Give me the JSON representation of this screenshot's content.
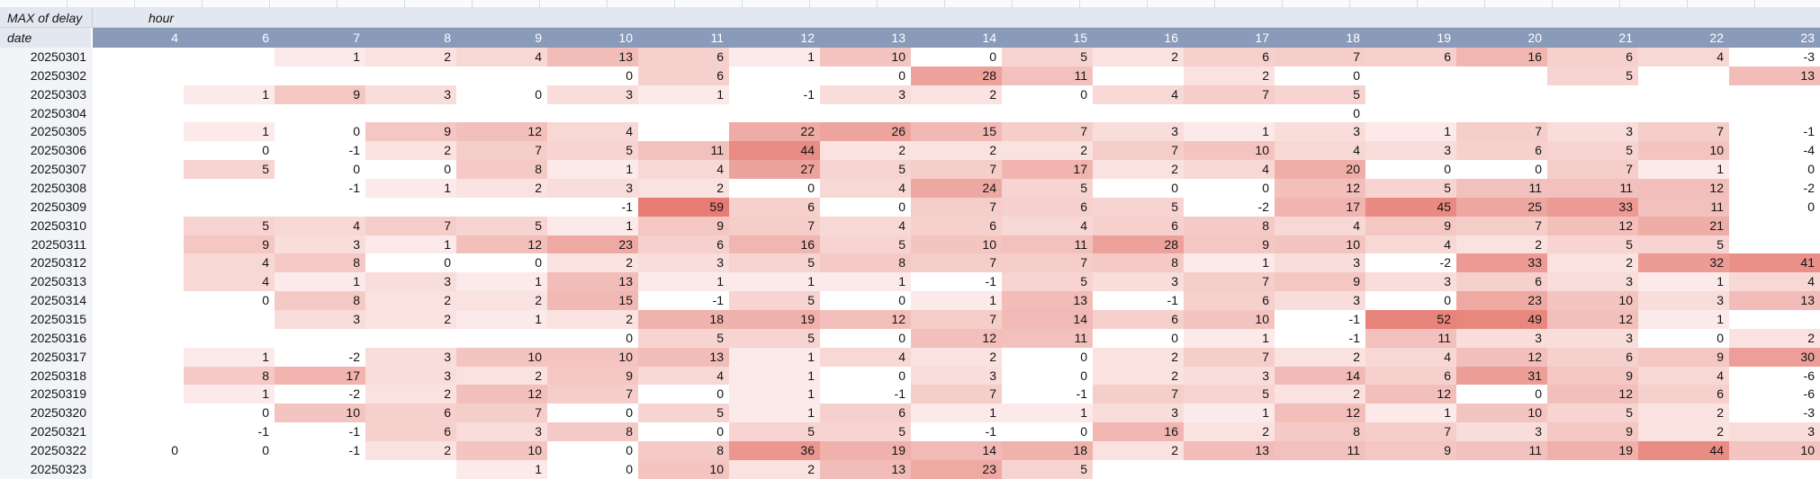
{
  "pivot": {
    "measure_label": "MAX of delay",
    "col_dimension_label": "hour",
    "row_dimension_label": "date",
    "hours": [
      "4",
      "6",
      "7",
      "8",
      "9",
      "10",
      "11",
      "12",
      "13",
      "14",
      "15",
      "16",
      "17",
      "18",
      "19",
      "20",
      "21",
      "22",
      "23"
    ],
    "rows": [
      {
        "date": "20250301",
        "values": [
          null,
          null,
          1,
          2,
          4,
          13,
          6,
          1,
          10,
          0,
          5,
          2,
          6,
          7,
          6,
          16,
          6,
          4,
          -3
        ]
      },
      {
        "date": "20250302",
        "values": [
          null,
          null,
          null,
          null,
          null,
          0,
          6,
          null,
          0,
          28,
          11,
          null,
          2,
          0,
          null,
          null,
          5,
          null,
          13
        ]
      },
      {
        "date": "20250303",
        "values": [
          null,
          1,
          9,
          3,
          0,
          3,
          1,
          -1,
          3,
          2,
          0,
          4,
          7,
          5,
          null,
          null,
          null,
          null,
          null
        ]
      },
      {
        "date": "20250304",
        "values": [
          null,
          null,
          null,
          null,
          null,
          null,
          null,
          null,
          null,
          null,
          null,
          null,
          null,
          0,
          null,
          null,
          null,
          null,
          null
        ]
      },
      {
        "date": "20250305",
        "values": [
          null,
          1,
          0,
          9,
          12,
          4,
          null,
          22,
          26,
          15,
          7,
          3,
          1,
          3,
          1,
          7,
          3,
          7,
          -1
        ]
      },
      {
        "date": "20250306",
        "values": [
          null,
          0,
          -1,
          2,
          7,
          5,
          11,
          44,
          2,
          2,
          2,
          7,
          10,
          4,
          3,
          6,
          5,
          10,
          -4
        ]
      },
      {
        "date": "20250307",
        "values": [
          null,
          5,
          0,
          0,
          8,
          1,
          4,
          27,
          5,
          7,
          17,
          2,
          4,
          20,
          0,
          0,
          7,
          1,
          0
        ]
      },
      {
        "date": "20250308",
        "values": [
          null,
          null,
          -1,
          1,
          2,
          3,
          2,
          0,
          4,
          24,
          5,
          0,
          0,
          12,
          5,
          11,
          11,
          12,
          -2
        ]
      },
      {
        "date": "20250309",
        "values": [
          null,
          null,
          null,
          null,
          null,
          -1,
          59,
          6,
          0,
          7,
          6,
          5,
          -2,
          17,
          45,
          25,
          33,
          11,
          0
        ]
      },
      {
        "date": "20250310",
        "values": [
          null,
          5,
          4,
          7,
          5,
          1,
          9,
          7,
          4,
          6,
          4,
          6,
          8,
          4,
          9,
          7,
          12,
          21,
          null
        ]
      },
      {
        "date": "20250311",
        "values": [
          null,
          9,
          3,
          1,
          12,
          23,
          6,
          16,
          5,
          10,
          11,
          28,
          9,
          10,
          4,
          2,
          5,
          5,
          null
        ]
      },
      {
        "date": "20250312",
        "values": [
          null,
          4,
          8,
          0,
          0,
          2,
          3,
          5,
          8,
          7,
          7,
          8,
          1,
          3,
          -2,
          33,
          2,
          32,
          41
        ]
      },
      {
        "date": "20250313",
        "values": [
          null,
          4,
          1,
          3,
          1,
          13,
          1,
          1,
          1,
          -1,
          5,
          3,
          7,
          9,
          3,
          6,
          3,
          1,
          4
        ]
      },
      {
        "date": "20250314",
        "values": [
          null,
          0,
          8,
          2,
          2,
          15,
          -1,
          5,
          0,
          1,
          13,
          -1,
          6,
          3,
          0,
          23,
          10,
          3,
          13
        ]
      },
      {
        "date": "20250315",
        "values": [
          null,
          null,
          3,
          2,
          1,
          2,
          18,
          19,
          12,
          7,
          14,
          6,
          10,
          -1,
          52,
          49,
          12,
          1,
          null
        ]
      },
      {
        "date": "20250316",
        "values": [
          null,
          null,
          null,
          null,
          null,
          0,
          5,
          5,
          0,
          12,
          11,
          0,
          1,
          -1,
          11,
          3,
          3,
          0,
          2
        ]
      },
      {
        "date": "20250317",
        "values": [
          null,
          1,
          -2,
          3,
          10,
          10,
          13,
          1,
          4,
          2,
          0,
          2,
          7,
          2,
          4,
          12,
          6,
          9,
          30
        ]
      },
      {
        "date": "20250318",
        "values": [
          null,
          8,
          17,
          3,
          2,
          9,
          4,
          1,
          0,
          3,
          0,
          2,
          3,
          14,
          6,
          31,
          9,
          4,
          -6
        ]
      },
      {
        "date": "20250319",
        "values": [
          null,
          1,
          -2,
          2,
          12,
          7,
          0,
          1,
          -1,
          7,
          -1,
          7,
          5,
          2,
          12,
          0,
          12,
          6,
          -6
        ]
      },
      {
        "date": "20250320",
        "values": [
          null,
          0,
          10,
          6,
          7,
          0,
          5,
          1,
          6,
          1,
          1,
          3,
          1,
          12,
          1,
          10,
          5,
          2,
          -3
        ]
      },
      {
        "date": "20250321",
        "values": [
          null,
          -1,
          -1,
          6,
          3,
          8,
          0,
          5,
          5,
          -1,
          0,
          16,
          2,
          8,
          7,
          3,
          9,
          2,
          3
        ]
      },
      {
        "date": "20250322",
        "values": [
          0,
          0,
          -1,
          2,
          10,
          0,
          8,
          36,
          19,
          14,
          18,
          2,
          13,
          11,
          9,
          11,
          19,
          44,
          10
        ]
      },
      {
        "date": "20250323",
        "values": [
          null,
          null,
          null,
          null,
          1,
          0,
          10,
          2,
          13,
          23,
          5,
          null,
          null,
          null,
          null,
          null,
          null,
          null,
          null
        ]
      }
    ]
  },
  "heatmap_scale": {
    "min_color": "#ffffff",
    "max_color": "#e67c73",
    "floor_value": 0,
    "max_value": 59,
    "gamma": 0.45
  },
  "colors": {
    "header_bg": "#8a9ab9",
    "header_text": "#ffffff",
    "corner_bg": "#e3e7ef",
    "date_column_bg": "#f2f4f8",
    "cell_text": "#141414"
  }
}
